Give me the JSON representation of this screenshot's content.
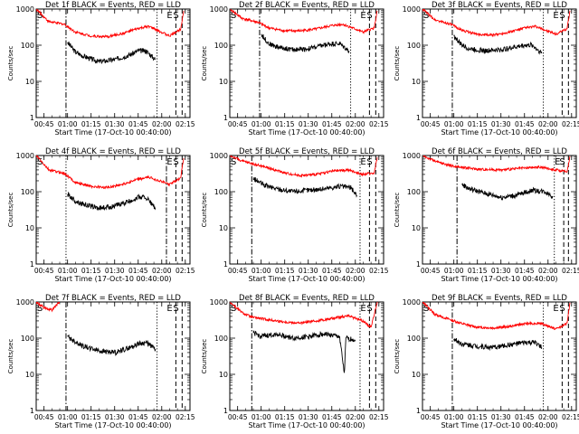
{
  "figure": {
    "colors": {
      "events": "#000000",
      "lld": "#ff0000",
      "axes": "#000000",
      "background": "#ffffff"
    }
  },
  "chart_data": [
    {
      "type": "line",
      "title": "Det 1f BLACK = Events, RED = LLD",
      "xlabel": "Start Time (17-Oct-10 00:40:00)",
      "ylabel": "Counts/sec",
      "xlim": [
        "00:40",
        "02:18"
      ],
      "ylim": [
        1,
        1000
      ],
      "yscale": "log",
      "xticks": [
        "00:45",
        "01:00",
        "01:15",
        "01:30",
        "01:45",
        "02:00",
        "02:15"
      ],
      "yticks": [
        "1",
        "10",
        "100",
        "1000"
      ],
      "markers": [
        {
          "label": "S",
          "time": "00:40",
          "style": "solid"
        },
        {
          "label": "",
          "time": "00:59",
          "style": "dash-dot"
        },
        {
          "label": "",
          "time": "01:57",
          "style": "dotted"
        },
        {
          "label": "E",
          "time": "02:09",
          "style": "dashed"
        },
        {
          "label": "S",
          "time": "02:13",
          "style": "dashed"
        }
      ],
      "series": [
        {
          "name": "Events",
          "color": "#000000",
          "x": [
            "01:00",
            "01:05",
            "01:10",
            "01:20",
            "01:30",
            "01:40",
            "01:45",
            "01:50",
            "01:56"
          ],
          "y": [
            120,
            65,
            50,
            35,
            40,
            55,
            70,
            70,
            40
          ]
        },
        {
          "name": "LLD",
          "color": "#ff0000",
          "x": [
            "00:40",
            "00:48",
            "00:58",
            "01:05",
            "01:15",
            "01:25",
            "01:35",
            "01:45",
            "01:52",
            "02:05",
            "02:12",
            "02:14"
          ],
          "y": [
            1000,
            450,
            380,
            230,
            180,
            170,
            210,
            290,
            330,
            180,
            280,
            900
          ]
        }
      ]
    },
    {
      "type": "line",
      "title": "Det 2f BLACK = Events, RED = LLD",
      "xlabel": "Start Time (17-Oct-10 00:40:00)",
      "ylabel": "Counts/sec",
      "xlim": [
        "00:40",
        "02:18"
      ],
      "ylim": [
        1,
        1000
      ],
      "yscale": "log",
      "xticks": [
        "00:45",
        "01:00",
        "01:15",
        "01:30",
        "01:45",
        "02:00",
        "02:15"
      ],
      "yticks": [
        "1",
        "10",
        "100",
        "1000"
      ],
      "markers": [
        {
          "label": "S",
          "time": "00:40",
          "style": "solid"
        },
        {
          "label": "",
          "time": "00:59",
          "style": "dash-dot"
        },
        {
          "label": "",
          "time": "01:57",
          "style": "dotted"
        },
        {
          "label": "E",
          "time": "02:09",
          "style": "dashed"
        },
        {
          "label": "S",
          "time": "02:13",
          "style": "dashed"
        }
      ],
      "series": [
        {
          "name": "Events",
          "color": "#000000",
          "x": [
            "01:00",
            "01:05",
            "01:10",
            "01:20",
            "01:30",
            "01:40",
            "01:45",
            "01:50",
            "01:56"
          ],
          "y": [
            200,
            110,
            90,
            75,
            80,
            100,
            110,
            110,
            70
          ]
        },
        {
          "name": "LLD",
          "color": "#ff0000",
          "x": [
            "00:40",
            "00:48",
            "00:58",
            "01:05",
            "01:15",
            "01:25",
            "01:35",
            "01:45",
            "01:52",
            "02:05",
            "02:12",
            "02:14"
          ],
          "y": [
            1000,
            550,
            430,
            300,
            250,
            250,
            280,
            350,
            380,
            230,
            300,
            900
          ]
        }
      ]
    },
    {
      "type": "line",
      "title": "Det 3f BLACK = Events, RED = LLD",
      "xlabel": "Start Time (17-Oct-10 00:40:00)",
      "ylabel": "Counts/sec",
      "xlim": [
        "00:40",
        "02:18"
      ],
      "ylim": [
        1,
        1000
      ],
      "yscale": "log",
      "xticks": [
        "00:45",
        "01:00",
        "01:15",
        "01:30",
        "01:45",
        "02:00",
        "02:15"
      ],
      "yticks": [
        "1",
        "10",
        "100",
        "1000"
      ],
      "markers": [
        {
          "label": "S",
          "time": "00:40",
          "style": "solid"
        },
        {
          "label": "",
          "time": "00:59",
          "style": "dash-dot"
        },
        {
          "label": "",
          "time": "01:57",
          "style": "dotted"
        },
        {
          "label": "E",
          "time": "02:09",
          "style": "dashed"
        },
        {
          "label": "S",
          "time": "02:13",
          "style": "dashed"
        }
      ],
      "series": [
        {
          "name": "Events",
          "color": "#000000",
          "x": [
            "01:00",
            "01:05",
            "01:10",
            "01:20",
            "01:30",
            "01:40",
            "01:45",
            "01:50",
            "01:56"
          ],
          "y": [
            180,
            100,
            80,
            70,
            75,
            90,
            100,
            100,
            60
          ]
        },
        {
          "name": "LLD",
          "color": "#ff0000",
          "x": [
            "00:40",
            "00:48",
            "00:58",
            "01:05",
            "01:15",
            "01:25",
            "01:35",
            "01:45",
            "01:52",
            "02:05",
            "02:12",
            "02:14"
          ],
          "y": [
            1000,
            500,
            380,
            260,
            200,
            190,
            230,
            300,
            330,
            200,
            280,
            900
          ]
        }
      ]
    },
    {
      "type": "line",
      "title": "Det 4f BLACK = Events, RED = LLD",
      "xlabel": "Start Time (17-Oct-10 00:40:00)",
      "ylabel": "Counts/sec",
      "xlim": [
        "00:40",
        "02:18"
      ],
      "ylim": [
        1,
        1000
      ],
      "yscale": "log",
      "xticks": [
        "00:45",
        "01:00",
        "01:15",
        "01:30",
        "01:45",
        "02:00",
        "02:15"
      ],
      "yticks": [
        "1",
        "10",
        "100",
        "1000"
      ],
      "markers": [
        {
          "label": "S",
          "time": "00:40",
          "style": "solid"
        },
        {
          "label": "",
          "time": "00:59",
          "style": "dotted"
        },
        {
          "label": "",
          "time": "02:03",
          "style": "dash-dot"
        },
        {
          "label": "E",
          "time": "02:09",
          "style": "dashed"
        },
        {
          "label": "S",
          "time": "02:13",
          "style": "dashed"
        }
      ],
      "series": [
        {
          "name": "Events",
          "color": "#000000",
          "x": [
            "01:00",
            "01:05",
            "01:10",
            "01:20",
            "01:30",
            "01:40",
            "01:45",
            "01:50",
            "01:56"
          ],
          "y": [
            85,
            55,
            45,
            35,
            40,
            55,
            70,
            70,
            35
          ]
        },
        {
          "name": "LLD",
          "color": "#ff0000",
          "x": [
            "00:40",
            "00:48",
            "00:58",
            "01:05",
            "01:15",
            "01:25",
            "01:35",
            "01:45",
            "01:52",
            "02:05",
            "02:12",
            "02:14"
          ],
          "y": [
            1000,
            400,
            320,
            180,
            140,
            130,
            160,
            220,
            250,
            160,
            240,
            850
          ]
        }
      ]
    },
    {
      "type": "line",
      "title": "Det 5f BLACK = Events, RED = LLD",
      "xlabel": "Start Time (17-Oct-10 00:40:00)",
      "ylabel": "Counts/sec",
      "xlim": [
        "00:40",
        "02:18"
      ],
      "ylim": [
        1,
        1000
      ],
      "yscale": "log",
      "xticks": [
        "00:45",
        "01:00",
        "01:15",
        "01:30",
        "01:45",
        "02:00",
        "02:15"
      ],
      "yticks": [
        "1",
        "10",
        "100",
        "1000"
      ],
      "markers": [
        {
          "label": "S",
          "time": "00:40",
          "style": "solid"
        },
        {
          "label": "",
          "time": "00:54",
          "style": "dash-dot"
        },
        {
          "label": "",
          "time": "02:03",
          "style": "dotted"
        },
        {
          "label": "E",
          "time": "02:09",
          "style": "dashed"
        },
        {
          "label": "S",
          "time": "02:13",
          "style": "dashed"
        }
      ],
      "series": [
        {
          "name": "Events",
          "color": "#000000",
          "x": [
            "00:55",
            "01:02",
            "01:10",
            "01:20",
            "01:30",
            "01:40",
            "01:50",
            "01:57",
            "02:01"
          ],
          "y": [
            230,
            150,
            120,
            100,
            110,
            120,
            140,
            130,
            80
          ]
        },
        {
          "name": "LLD",
          "color": "#ff0000",
          "x": [
            "00:40",
            "00:48",
            "00:54",
            "01:05",
            "01:15",
            "01:25",
            "01:35",
            "01:45",
            "01:55",
            "02:05",
            "02:12",
            "02:14"
          ],
          "y": [
            1000,
            700,
            600,
            450,
            330,
            280,
            300,
            370,
            400,
            300,
            330,
            900
          ]
        }
      ]
    },
    {
      "type": "line",
      "title": "Det 6f BLACK = Events, RED = LLD",
      "xlabel": "Start Time (17-Oct-10 00:40:00)",
      "ylabel": "Counts/sec",
      "xlim": [
        "00:40",
        "02:18"
      ],
      "ylim": [
        1,
        1000
      ],
      "yscale": "log",
      "xticks": [
        "00:45",
        "01:00",
        "01:15",
        "01:30",
        "01:45",
        "02:00",
        "02:15"
      ],
      "yticks": [
        "1",
        "10",
        "100",
        "1000"
      ],
      "markers": [
        {
          "label": "",
          "time": "01:02",
          "style": "dash-dot"
        },
        {
          "label": "",
          "time": "02:04",
          "style": "dotted"
        },
        {
          "label": "E",
          "time": "02:10",
          "style": "dashed"
        },
        {
          "label": "S",
          "time": "02:13",
          "style": "dashed"
        }
      ],
      "series": [
        {
          "name": "Events",
          "color": "#000000",
          "x": [
            "01:05",
            "01:10",
            "01:20",
            "01:30",
            "01:40",
            "01:50",
            "01:58",
            "02:03"
          ],
          "y": [
            160,
            120,
            90,
            70,
            80,
            110,
            100,
            75
          ]
        },
        {
          "name": "LLD",
          "color": "#ff0000",
          "x": [
            "00:40",
            "00:45",
            "00:50",
            "01:00",
            "01:15",
            "01:30",
            "01:45",
            "01:55",
            "02:05",
            "02:12",
            "02:14"
          ],
          "y": [
            1000,
            800,
            650,
            500,
            420,
            400,
            450,
            480,
            400,
            350,
            950
          ]
        }
      ]
    },
    {
      "type": "line",
      "title": "Det 7f BLACK = Events, RED = LLD",
      "xlabel": "Start Time (17-Oct-10 00:40:00)",
      "ylabel": "Counts/sec",
      "xlim": [
        "00:40",
        "02:18"
      ],
      "ylim": [
        1,
        1000
      ],
      "yscale": "log",
      "xticks": [
        "00:45",
        "01:00",
        "01:15",
        "01:30",
        "01:45",
        "02:00",
        "02:15"
      ],
      "yticks": [
        "1",
        "10",
        "100",
        "1000"
      ],
      "markers": [
        {
          "label": "S",
          "time": "00:40",
          "style": "solid"
        },
        {
          "label": "",
          "time": "00:59",
          "style": "dash-dot"
        },
        {
          "label": "",
          "time": "01:57",
          "style": "dotted"
        },
        {
          "label": "E",
          "time": "02:09",
          "style": "dashed"
        },
        {
          "label": "S",
          "time": "02:13",
          "style": "dashed"
        }
      ],
      "series": [
        {
          "name": "Events",
          "color": "#000000",
          "x": [
            "01:00",
            "01:03",
            "01:10",
            "01:20",
            "01:30",
            "01:40",
            "01:45",
            "01:50",
            "01:56"
          ],
          "y": [
            110,
            90,
            60,
            45,
            40,
            55,
            70,
            75,
            50
          ]
        },
        {
          "name": "LLD",
          "color": "#ff0000",
          "x": [
            "00:40",
            "00:45",
            "00:50",
            "00:55"
          ],
          "y": [
            1000,
            700,
            600,
            1000
          ]
        }
      ]
    },
    {
      "type": "line",
      "title": "Det 8f BLACK = Events, RED = LLD",
      "xlabel": "Start Time (17-Oct-10 00:40:00)",
      "ylabel": "Counts/sec",
      "xlim": [
        "00:40",
        "02:18"
      ],
      "ylim": [
        1,
        1000
      ],
      "yscale": "log",
      "xticks": [
        "00:45",
        "01:00",
        "01:15",
        "01:30",
        "01:45",
        "02:00",
        "02:15"
      ],
      "yticks": [
        "1",
        "10",
        "100",
        "1000"
      ],
      "markers": [
        {
          "label": "S",
          "time": "00:40",
          "style": "solid"
        },
        {
          "label": "",
          "time": "00:54",
          "style": "dash-dot"
        },
        {
          "label": "",
          "time": "02:03",
          "style": "dotted"
        },
        {
          "label": "E",
          "time": "02:09",
          "style": "dashed"
        },
        {
          "label": "S",
          "time": "02:13",
          "style": "dashed"
        }
      ],
      "series": [
        {
          "name": "Events",
          "color": "#000000",
          "x": [
            "00:55",
            "01:00",
            "01:10",
            "01:20",
            "01:30",
            "01:40",
            "01:50",
            "01:53",
            "01:54",
            "02:00"
          ],
          "y": [
            140,
            110,
            130,
            100,
            110,
            130,
            110,
            10,
            100,
            90
          ]
        },
        {
          "name": "LLD",
          "color": "#ff0000",
          "x": [
            "00:40",
            "00:48",
            "00:54",
            "01:05",
            "01:15",
            "01:25",
            "01:35",
            "01:45",
            "01:55",
            "02:05",
            "02:10",
            "02:14"
          ],
          "y": [
            1000,
            500,
            380,
            320,
            280,
            260,
            300,
            350,
            420,
            300,
            200,
            1000
          ]
        }
      ]
    },
    {
      "type": "line",
      "title": "Det 9f BLACK = Events, RED = LLD",
      "xlabel": "Start Time (17-Oct-10 00:40:00)",
      "ylabel": "Counts/sec",
      "xlim": [
        "00:40",
        "02:18"
      ],
      "ylim": [
        1,
        1000
      ],
      "yscale": "log",
      "xticks": [
        "00:45",
        "01:00",
        "01:15",
        "01:30",
        "01:45",
        "02:00",
        "02:15"
      ],
      "yticks": [
        "1",
        "10",
        "100",
        "1000"
      ],
      "markers": [
        {
          "label": "S",
          "time": "00:40",
          "style": "solid"
        },
        {
          "label": "",
          "time": "00:59",
          "style": "dash-dot"
        },
        {
          "label": "",
          "time": "01:57",
          "style": "dotted"
        },
        {
          "label": "E",
          "time": "02:09",
          "style": "dashed"
        },
        {
          "label": "S",
          "time": "02:13",
          "style": "dashed"
        }
      ],
      "series": [
        {
          "name": "Events",
          "color": "#000000",
          "x": [
            "01:00",
            "01:05",
            "01:15",
            "01:25",
            "01:35",
            "01:45",
            "01:52",
            "01:56"
          ],
          "y": [
            95,
            70,
            60,
            55,
            65,
            75,
            75,
            55
          ]
        },
        {
          "name": "LLD",
          "color": "#ff0000",
          "x": [
            "00:40",
            "00:48",
            "00:58",
            "01:05",
            "01:15",
            "01:25",
            "01:35",
            "01:45",
            "01:55",
            "02:05",
            "02:12",
            "02:14"
          ],
          "y": [
            1000,
            450,
            320,
            250,
            200,
            190,
            210,
            250,
            260,
            180,
            250,
            950
          ]
        }
      ]
    }
  ]
}
